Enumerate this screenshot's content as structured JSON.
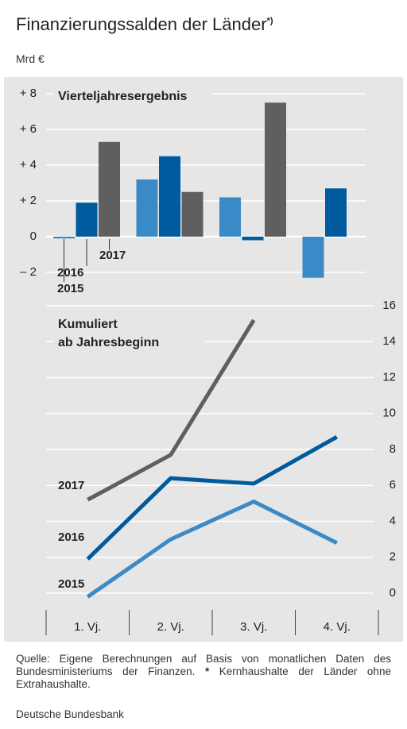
{
  "title": "Finanzierungssalden der Länder",
  "title_note": "*)",
  "unit": "Mrd €",
  "chart_data": [
    {
      "type": "bar",
      "title": "Vierteljahresergebnis",
      "ylim": [
        -2.6,
        8.4
      ],
      "yticks": [
        {
          "value": 8,
          "label": "+ 8"
        },
        {
          "value": 6,
          "label": "+ 6"
        },
        {
          "value": 4,
          "label": "+ 4"
        },
        {
          "value": 2,
          "label": "+ 2"
        },
        0,
        {
          "value": -2,
          "label": "– 2"
        }
      ],
      "grid": true,
      "series": [
        {
          "name": "2015",
          "color": "#3a8ac8",
          "values": [
            -0.1,
            3.2,
            2.2,
            -2.3
          ]
        },
        {
          "name": "2016",
          "color": "#005a9e",
          "values": [
            1.9,
            4.5,
            -0.2,
            2.7
          ]
        },
        {
          "name": "2017",
          "color": "#5f5f5f",
          "values": [
            5.3,
            2.5,
            7.5,
            null
          ]
        }
      ]
    },
    {
      "type": "line",
      "title": [
        "Kumuliert",
        "ab Jahresbeginn"
      ],
      "categories": [
        "1. Vj.",
        "2. Vj.",
        "3. Vj.",
        "4. Vj."
      ],
      "ylim": [
        -0.9,
        16.9
      ],
      "yticks": [
        0,
        2,
        4,
        6,
        8,
        10,
        12,
        14,
        16
      ],
      "grid": true,
      "series": [
        {
          "name": "2017",
          "color": "#5f5f5f",
          "values": [
            5.2,
            7.7,
            15.2,
            null
          ]
        },
        {
          "name": "2016",
          "color": "#005a9e",
          "values": [
            1.9,
            6.4,
            6.1,
            8.7
          ]
        },
        {
          "name": "2015",
          "color": "#3a8ac8",
          "values": [
            -0.2,
            3.0,
            5.1,
            2.8
          ]
        }
      ]
    }
  ],
  "source": "Quelle: Eigene Berechnungen auf Basis von monatlichen Daten des Bundesministeriums der Finanzen.",
  "footnote_mark": "*",
  "footnote": "Kernhaushalte der Länder ohne Extrahaushalte.",
  "publisher": "Deutsche Bundesbank"
}
